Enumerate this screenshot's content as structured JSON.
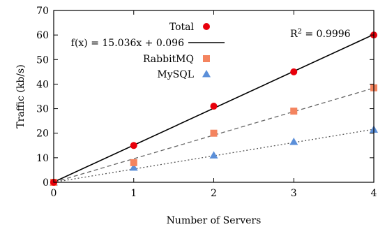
{
  "chart_data": {
    "type": "scatter",
    "xlabel": "Number of Servers",
    "ylabel": "Traffic (kb/s)",
    "xlim": [
      0,
      4
    ],
    "ylim": [
      0,
      70
    ],
    "xticks": [
      0,
      1,
      2,
      3,
      4
    ],
    "yticks": [
      0,
      10,
      20,
      30,
      40,
      50,
      60,
      70
    ],
    "grid": false,
    "legend_position": "top-left",
    "annotation": {
      "text_main": "R",
      "text_sup": "2",
      "text_rest": " = 0.9996"
    },
    "series": [
      {
        "name": "Total",
        "marker": "circle",
        "color": "#e8000b",
        "x": [
          0,
          1,
          2,
          3,
          4
        ],
        "y": [
          0,
          15,
          31,
          45,
          60
        ]
      },
      {
        "name": "RabbitMQ",
        "marker": "square",
        "color": "#f4845f",
        "x": [
          0,
          1,
          2,
          3,
          4
        ],
        "y": [
          0,
          8,
          20,
          29,
          38.5
        ]
      },
      {
        "name": "MySQL",
        "marker": "triangle",
        "color": "#5b8fd9",
        "x": [
          0,
          1,
          2,
          3,
          4
        ],
        "y": [
          0,
          6,
          11,
          16.5,
          21.5
        ]
      }
    ],
    "fit_lines": [
      {
        "label": "f(x) = 15.036x + 0.096",
        "slope": 15.036,
        "intercept": 0.096,
        "style": "solid",
        "color": "#000000"
      },
      {
        "label": "",
        "slope": 9.6,
        "intercept": 0,
        "style": "dashed",
        "color": "#666666"
      },
      {
        "label": "",
        "slope": 5.4,
        "intercept": 0,
        "style": "dotted",
        "color": "#555555"
      }
    ]
  }
}
